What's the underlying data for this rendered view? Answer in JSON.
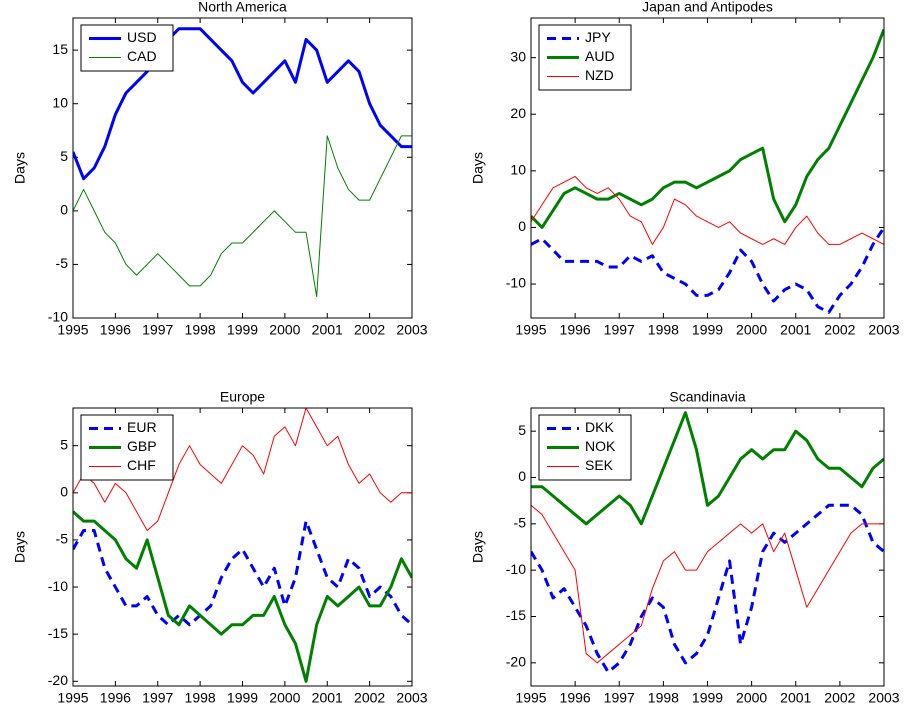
{
  "chart_data": [
    {
      "type": "line",
      "title": "North America",
      "y_label": "Days",
      "x": [
        1995,
        1995.25,
        1995.5,
        1995.75,
        1996,
        1996.25,
        1996.5,
        1996.75,
        1997,
        1997.25,
        1997.5,
        1997.75,
        1998,
        1998.25,
        1998.5,
        1998.75,
        1999,
        1999.25,
        1999.5,
        1999.75,
        2000,
        2000.25,
        2000.5,
        2000.75,
        2001,
        2001.25,
        2001.5,
        2001.75,
        2002,
        2002.25,
        2002.5,
        2002.75,
        2003
      ],
      "xlim": [
        1995,
        2003
      ],
      "xticks": [
        1995,
        1996,
        1997,
        1998,
        1999,
        2000,
        2001,
        2002,
        2003
      ],
      "ylim": [
        -10,
        18
      ],
      "yticks": [
        -10,
        -5,
        0,
        5,
        10,
        15
      ],
      "legend": "upper-left",
      "series": [
        {
          "name": "USD",
          "color": "#0000ff",
          "linewidth": 3,
          "linestyle": "solid",
          "values": [
            5.5,
            3,
            4,
            6,
            9,
            11,
            12,
            13,
            15,
            16,
            17,
            17,
            17,
            16,
            15,
            14,
            12,
            11,
            12,
            13,
            14,
            12,
            16,
            15,
            12,
            13,
            14,
            13,
            10,
            8,
            7,
            6,
            6
          ]
        },
        {
          "name": "CAD",
          "color": "#008000",
          "linewidth": 1,
          "linestyle": "solid",
          "values": [
            0,
            2,
            0,
            -2,
            -3,
            -5,
            -6,
            -5,
            -4,
            -5,
            -6,
            -7,
            -7,
            -6,
            -4,
            -3,
            -3,
            -2,
            -1,
            0,
            -1,
            -2,
            -2,
            -8,
            7,
            4,
            2,
            1,
            1,
            3,
            5,
            7,
            7
          ]
        }
      ]
    },
    {
      "type": "line",
      "title": "Japan and Antipodes",
      "y_label": "Days",
      "x": [
        1995,
        1995.25,
        1995.5,
        1995.75,
        1996,
        1996.25,
        1996.5,
        1996.75,
        1997,
        1997.25,
        1997.5,
        1997.75,
        1998,
        1998.25,
        1998.5,
        1998.75,
        1999,
        1999.25,
        1999.5,
        1999.75,
        2000,
        2000.25,
        2000.5,
        2000.75,
        2001,
        2001.25,
        2001.5,
        2001.75,
        2002,
        2002.25,
        2002.5,
        2002.75,
        2003
      ],
      "xlim": [
        1995,
        2003
      ],
      "xticks": [
        1995,
        1996,
        1997,
        1998,
        1999,
        2000,
        2001,
        2002,
        2003
      ],
      "ylim": [
        -16,
        37
      ],
      "yticks": [
        -10,
        0,
        10,
        20,
        30
      ],
      "legend": "upper-left",
      "series": [
        {
          "name": "JPY",
          "color": "#0000ff",
          "linewidth": 3,
          "linestyle": "dashed",
          "values": [
            -3,
            -2,
            -4,
            -6,
            -6,
            -6,
            -6,
            -7,
            -7,
            -5,
            -6,
            -5,
            -8,
            -9,
            -10,
            -12,
            -12,
            -11,
            -8,
            -4,
            -6,
            -10,
            -13,
            -11,
            -10,
            -11,
            -14,
            -15,
            -12,
            -10,
            -7,
            -3,
            0
          ]
        },
        {
          "name": "AUD",
          "color": "#008000",
          "linewidth": 3,
          "linestyle": "solid",
          "values": [
            2,
            0,
            3,
            6,
            7,
            6,
            5,
            5,
            6,
            5,
            4,
            5,
            7,
            8,
            8,
            7,
            8,
            9,
            10,
            12,
            13,
            14,
            5,
            1,
            4,
            9,
            12,
            14,
            18,
            22,
            26,
            30,
            35
          ]
        },
        {
          "name": "NZD",
          "color": "#ff0000",
          "linewidth": 1,
          "linestyle": "solid",
          "values": [
            1,
            4,
            7,
            8,
            9,
            7,
            6,
            7,
            5,
            2,
            1,
            -3,
            0,
            5,
            4,
            2,
            1,
            0,
            1,
            -1,
            -2,
            -3,
            -2,
            -3,
            0,
            2,
            -1,
            -3,
            -3,
            -2,
            -1,
            -2,
            -3
          ]
        }
      ]
    },
    {
      "type": "line",
      "title": "Europe",
      "y_label": "Days",
      "x": [
        1995,
        1995.25,
        1995.5,
        1995.75,
        1996,
        1996.25,
        1996.5,
        1996.75,
        1997,
        1997.25,
        1997.5,
        1997.75,
        1998,
        1998.25,
        1998.5,
        1998.75,
        1999,
        1999.25,
        1999.5,
        1999.75,
        2000,
        2000.25,
        2000.5,
        2000.75,
        2001,
        2001.25,
        2001.5,
        2001.75,
        2002,
        2002.25,
        2002.5,
        2002.75,
        2003
      ],
      "xlim": [
        1995,
        2003
      ],
      "xticks": [
        1995,
        1996,
        1997,
        1998,
        1999,
        2000,
        2001,
        2002,
        2003
      ],
      "ylim": [
        -20.5,
        9
      ],
      "yticks": [
        -20,
        -15,
        -10,
        -5,
        0,
        5
      ],
      "legend": "upper-left",
      "series": [
        {
          "name": "EUR",
          "color": "#0000ff",
          "linewidth": 3,
          "linestyle": "dashed",
          "values": [
            -6,
            -4,
            -4,
            -8,
            -10,
            -12,
            -12,
            -11,
            -13,
            -14,
            -13,
            -14,
            -13,
            -12,
            -9,
            -7,
            -6,
            -8,
            -10,
            -8,
            -12,
            -9,
            -3,
            -6,
            -9,
            -10,
            -7,
            -8,
            -11,
            -10,
            -11,
            -13,
            -14
          ]
        },
        {
          "name": "GBP",
          "color": "#008000",
          "linewidth": 3,
          "linestyle": "solid",
          "values": [
            -2,
            -3,
            -3,
            -4,
            -5,
            -7,
            -8,
            -5,
            -9,
            -13,
            -14,
            -12,
            -13,
            -14,
            -15,
            -14,
            -14,
            -13,
            -13,
            -11,
            -14,
            -16,
            -20,
            -14,
            -11,
            -12,
            -11,
            -10,
            -12,
            -12,
            -10,
            -7,
            -9
          ]
        },
        {
          "name": "CHF",
          "color": "#ff0000",
          "linewidth": 1,
          "linestyle": "solid",
          "values": [
            0,
            2,
            1,
            -1,
            1,
            0,
            -2,
            -4,
            -3,
            0,
            3,
            5,
            3,
            2,
            1,
            3,
            5,
            4,
            2,
            6,
            7,
            5,
            9,
            7,
            5,
            6,
            3,
            1,
            2,
            0,
            -1,
            0,
            0
          ]
        }
      ]
    },
    {
      "type": "line",
      "title": "Scandinavia",
      "y_label": "Days",
      "x": [
        1995,
        1995.25,
        1995.5,
        1995.75,
        1996,
        1996.25,
        1996.5,
        1996.75,
        1997,
        1997.25,
        1997.5,
        1997.75,
        1998,
        1998.25,
        1998.5,
        1998.75,
        1999,
        1999.25,
        1999.5,
        1999.75,
        2000,
        2000.25,
        2000.5,
        2000.75,
        2001,
        2001.25,
        2001.5,
        2001.75,
        2002,
        2002.25,
        2002.5,
        2002.75,
        2003
      ],
      "xlim": [
        1995,
        2003
      ],
      "xticks": [
        1995,
        1996,
        1997,
        1998,
        1999,
        2000,
        2001,
        2002,
        2003
      ],
      "ylim": [
        -22.5,
        7.5
      ],
      "yticks": [
        -20,
        -15,
        -10,
        -5,
        0,
        5
      ],
      "legend": "upper-left",
      "series": [
        {
          "name": "DKK",
          "color": "#0000ff",
          "linewidth": 3,
          "linestyle": "dashed",
          "values": [
            -8,
            -10,
            -13,
            -12,
            -14,
            -16,
            -19,
            -21,
            -20,
            -18,
            -15,
            -13,
            -14,
            -18,
            -20,
            -19,
            -17,
            -13,
            -9,
            -18,
            -14,
            -8,
            -6,
            -7,
            -6,
            -5,
            -4,
            -3,
            -3,
            -3,
            -4,
            -7,
            -8
          ]
        },
        {
          "name": "NOK",
          "color": "#008000",
          "linewidth": 3,
          "linestyle": "solid",
          "values": [
            -1,
            -1,
            -2,
            -3,
            -4,
            -5,
            -4,
            -3,
            -2,
            -3,
            -5,
            -2,
            1,
            4,
            7,
            3,
            -3,
            -2,
            0,
            2,
            3,
            2,
            3,
            3,
            5,
            4,
            2,
            1,
            1,
            0,
            -1,
            1,
            2
          ]
        },
        {
          "name": "SEK",
          "color": "#ff0000",
          "linewidth": 1,
          "linestyle": "solid",
          "values": [
            -3,
            -4,
            -6,
            -8,
            -10,
            -19,
            -20,
            -19,
            -18,
            -17,
            -16,
            -12,
            -9,
            -8,
            -10,
            -10,
            -8,
            -7,
            -6,
            -5,
            -6,
            -5,
            -8,
            -6,
            -10,
            -14,
            -12,
            -10,
            -8,
            -6,
            -5,
            -5,
            -5
          ]
        }
      ]
    }
  ]
}
